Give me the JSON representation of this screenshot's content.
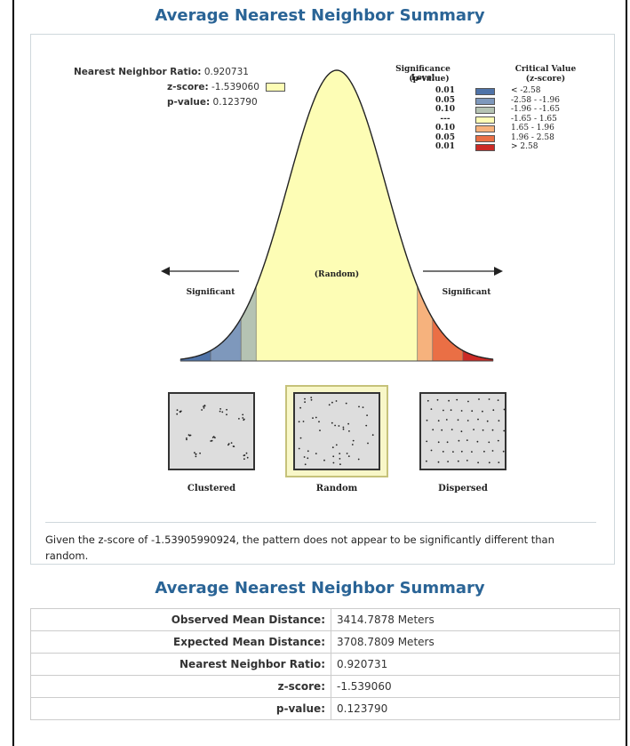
{
  "header": {
    "title": "Average Nearest Neighbor Summary"
  },
  "stats": {
    "ratio_label": "Nearest Neighbor Ratio:",
    "ratio_value": "0.920731",
    "z_label": "z-score:",
    "z_value": "-1.539060",
    "p_label": "p-value:",
    "p_value": "0.123790"
  },
  "legend": {
    "sig_header": "Significance Level",
    "sig_sub": "(p-value)",
    "crit_header": "Critical Value",
    "crit_sub": "(z-score)",
    "rows": [
      {
        "p": "0.01",
        "z": "< -2.58",
        "color": "#4f73a8"
      },
      {
        "p": "0.05",
        "z": "-2.58 - -1.96",
        "color": "#7e98bc"
      },
      {
        "p": "0.10",
        "z": "-1.96 - -1.65",
        "color": "#b5c3b3"
      },
      {
        "p": "---",
        "z": "-1.65 - 1.65",
        "color": "#fdfdb5"
      },
      {
        "p": "0.10",
        "z": "1.65 - 1.96",
        "color": "#f6b27d"
      },
      {
        "p": "0.05",
        "z": "1.96 - 2.58",
        "color": "#ea6f45"
      },
      {
        "p": "0.01",
        "z": "> 2.58",
        "color": "#cc2a25"
      }
    ]
  },
  "curve": {
    "left_label": "Significant",
    "center_label": "(Random)",
    "right_label": "Significant"
  },
  "patterns": {
    "clustered": "Clustered",
    "random": "Random",
    "dispersed": "Dispersed"
  },
  "conclusion": "Given the z-score of -1.53905990924, the pattern does not appear to be significantly different than random.",
  "summary": {
    "title": "Average Nearest Neighbor Summary",
    "rows": [
      {
        "label": "Observed Mean Distance:",
        "value": "3414.7878 Meters"
      },
      {
        "label": "Expected Mean Distance:",
        "value": "3708.7809 Meters"
      },
      {
        "label": "Nearest Neighbor Ratio:",
        "value": "0.920731"
      },
      {
        "label": "z-score:",
        "value": "-1.539060"
      },
      {
        "label": "p-value:",
        "value": "0.123790"
      }
    ]
  }
}
